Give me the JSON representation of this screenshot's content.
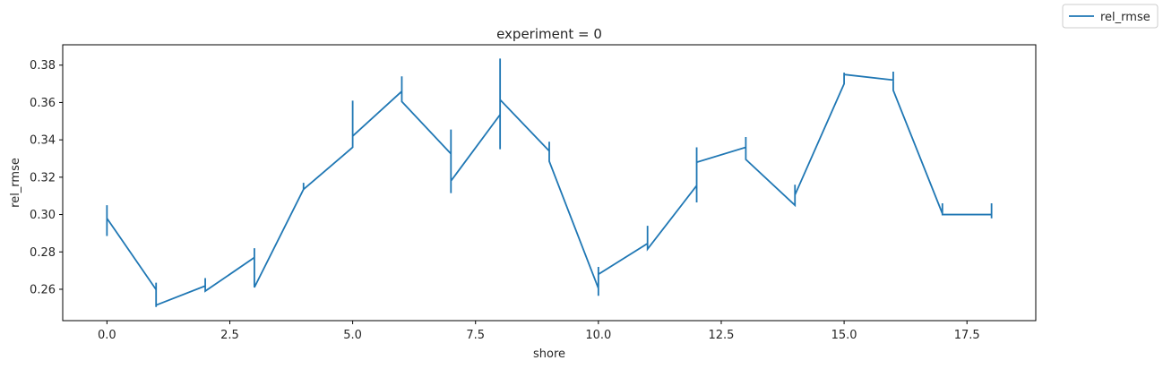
{
  "chart_data": {
    "type": "line",
    "title": "experiment = 0",
    "xlabel": "shore",
    "ylabel": "rel_rmse",
    "xlim": [
      -0.9,
      18.9
    ],
    "ylim": [
      0.2432,
      0.3909
    ],
    "xticks": [
      0.0,
      2.5,
      5.0,
      7.5,
      10.0,
      12.5,
      15.0,
      17.5
    ],
    "xtick_labels": [
      "0.0",
      "2.5",
      "5.0",
      "7.5",
      "10.0",
      "12.5",
      "15.0",
      "17.5"
    ],
    "yticks": [
      0.26,
      0.28,
      0.3,
      0.32,
      0.34,
      0.36,
      0.38
    ],
    "ytick_labels": [
      "0.26",
      "0.28",
      "0.30",
      "0.32",
      "0.34",
      "0.36",
      "0.38"
    ],
    "grid": false,
    "legend_position": "top-right",
    "series": [
      {
        "name": "rel_rmse",
        "color": "#1f77b4",
        "points": [
          [
            0,
            0.305
          ],
          [
            0,
            0.2885
          ],
          [
            0,
            0.298
          ],
          [
            1,
            0.2598
          ],
          [
            1,
            0.2635
          ],
          [
            1,
            0.2505
          ],
          [
            1,
            0.2515
          ],
          [
            2,
            0.2618
          ],
          [
            2,
            0.266
          ],
          [
            2,
            0.259
          ],
          [
            3,
            0.277
          ],
          [
            3,
            0.282
          ],
          [
            3,
            0.261
          ],
          [
            4,
            0.3135
          ],
          [
            4,
            0.317
          ],
          [
            4,
            0.3135
          ],
          [
            5,
            0.336
          ],
          [
            5,
            0.361
          ],
          [
            5,
            0.342
          ],
          [
            6,
            0.366
          ],
          [
            6,
            0.374
          ],
          [
            6,
            0.3605
          ],
          [
            7,
            0.3325
          ],
          [
            7,
            0.3455
          ],
          [
            7,
            0.3115
          ],
          [
            7,
            0.318
          ],
          [
            8,
            0.3535
          ],
          [
            8,
            0.3835
          ],
          [
            8,
            0.335
          ],
          [
            8,
            0.3615
          ],
          [
            9,
            0.334
          ],
          [
            9,
            0.339
          ],
          [
            9,
            0.3285
          ],
          [
            10,
            0.2605
          ],
          [
            10,
            0.272
          ],
          [
            10,
            0.2565
          ],
          [
            10,
            0.268
          ],
          [
            11,
            0.2845
          ],
          [
            11,
            0.294
          ],
          [
            11,
            0.2815
          ],
          [
            12,
            0.3155
          ],
          [
            12,
            0.336
          ],
          [
            12,
            0.3065
          ],
          [
            12,
            0.328
          ],
          [
            13,
            0.336
          ],
          [
            13,
            0.3415
          ],
          [
            13,
            0.3295
          ],
          [
            14,
            0.305
          ],
          [
            14,
            0.316
          ],
          [
            14,
            0.3105
          ],
          [
            15,
            0.37
          ],
          [
            15,
            0.376
          ],
          [
            15,
            0.375
          ],
          [
            16,
            0.372
          ],
          [
            16,
            0.3765
          ],
          [
            16,
            0.3665
          ],
          [
            17,
            0.3005
          ],
          [
            17,
            0.306
          ],
          [
            17,
            0.3
          ],
          [
            18,
            0.3
          ],
          [
            18,
            0.306
          ],
          [
            18,
            0.298
          ]
        ]
      }
    ]
  }
}
